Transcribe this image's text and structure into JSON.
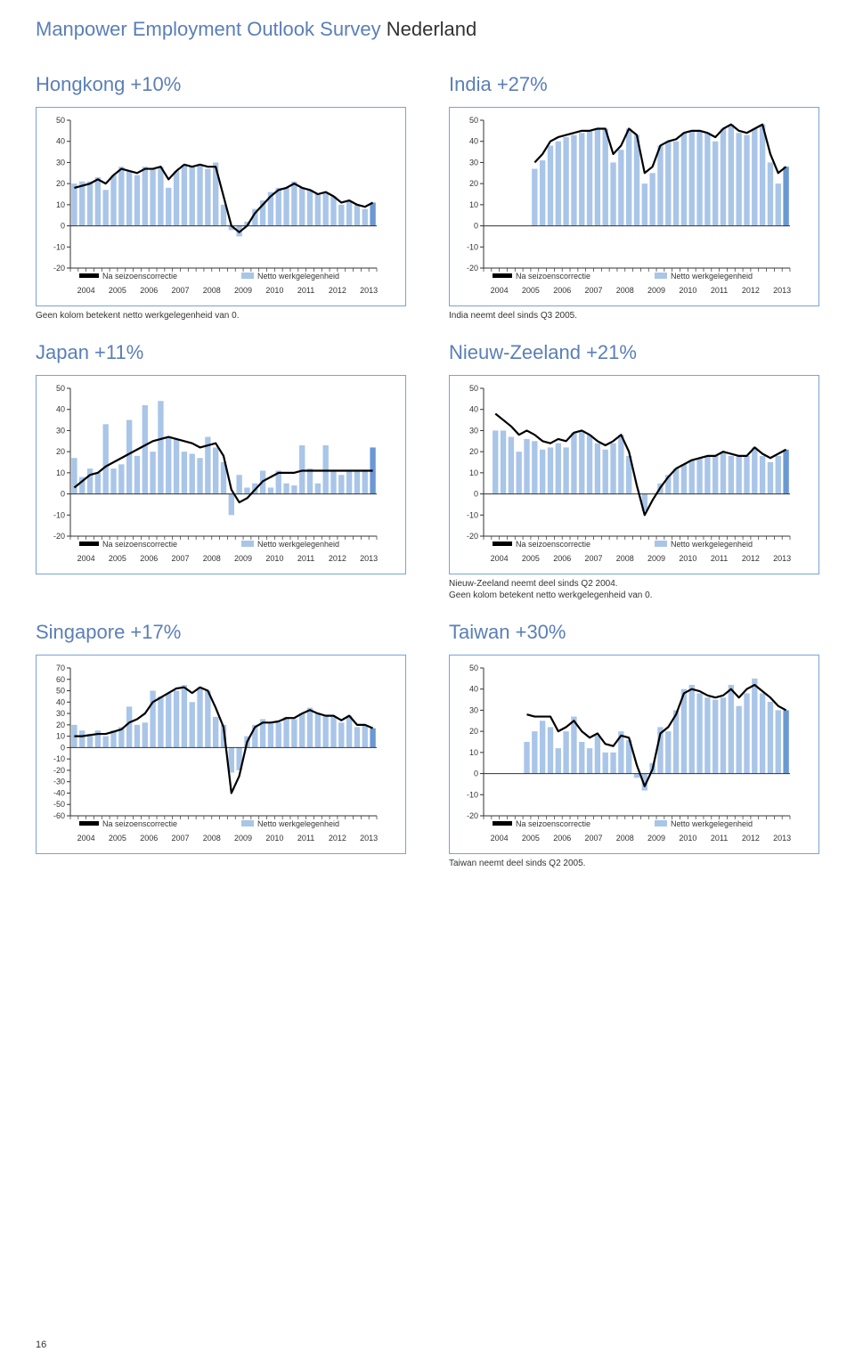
{
  "header": {
    "prefix": "Manpower Employment Outlook Survey",
    "suffix": "Nederland"
  },
  "legend": {
    "line_label": "Na seizoenscorrectie",
    "bar_label": "Netto werkgelegenheid"
  },
  "x_years": [
    "2004",
    "2005",
    "2006",
    "2007",
    "2008",
    "2009",
    "2010",
    "2011",
    "2012",
    "2013"
  ],
  "chart_style": {
    "bar_fill": "#a9c5e8",
    "bar_highlight": "#6a98d2",
    "line_color": "#000000",
    "line_width": 2.2,
    "axis_color": "#333333",
    "tick_font": 9,
    "label_font": 13
  },
  "charts": [
    {
      "title": "Hongkong +10%",
      "note_before": null,
      "note_after": "Geen kolom betekent netto werkgelegenheid van 0.",
      "y_min": -20,
      "y_max": 50,
      "y_step": 10,
      "bars": [
        20,
        21,
        21,
        23,
        17,
        24,
        28,
        26,
        24,
        28,
        27,
        28,
        18,
        26,
        29,
        28,
        29,
        27,
        30,
        10,
        -2,
        -5,
        2,
        8,
        12,
        16,
        18,
        18,
        21,
        18,
        17,
        15,
        16,
        14,
        10,
        12,
        10,
        8,
        11
      ],
      "line": [
        18,
        19,
        20,
        22,
        20,
        24,
        27,
        26,
        25,
        27,
        27,
        28,
        22,
        26,
        29,
        28,
        29,
        28,
        28,
        14,
        0,
        -3,
        0,
        6,
        10,
        14,
        17,
        18,
        20,
        18,
        17,
        15,
        16,
        14,
        11,
        12,
        10,
        9,
        11
      ],
      "highlight_last": true
    },
    {
      "title": "India +27%",
      "note_before": "India neemt deel sinds Q3 2005.",
      "note_after": null,
      "y_min": -20,
      "y_max": 50,
      "y_step": 10,
      "bars": [
        null,
        null,
        null,
        null,
        null,
        null,
        27,
        31,
        38,
        40,
        42,
        43,
        44,
        45,
        46,
        46,
        30,
        36,
        46,
        43,
        20,
        25,
        38,
        40,
        40,
        44,
        45,
        45,
        44,
        40,
        46,
        48,
        44,
        43,
        46,
        48,
        30,
        20,
        28
      ],
      "line": [
        null,
        null,
        null,
        null,
        null,
        null,
        30,
        34,
        40,
        42,
        43,
        44,
        45,
        45,
        46,
        46,
        34,
        38,
        46,
        43,
        25,
        28,
        38,
        40,
        41,
        44,
        45,
        45,
        44,
        42,
        46,
        48,
        45,
        44,
        46,
        48,
        34,
        25,
        28
      ],
      "highlight_last": true
    },
    {
      "title": "Japan +11%",
      "note_before": null,
      "note_after": null,
      "y_min": -20,
      "y_max": 50,
      "y_step": 10,
      "bars": [
        17,
        8,
        12,
        10,
        33,
        12,
        14,
        35,
        18,
        42,
        20,
        44,
        27,
        26,
        20,
        19,
        17,
        27,
        22,
        15,
        -10,
        9,
        3,
        5,
        11,
        3,
        11,
        5,
        4,
        23,
        12,
        5,
        23,
        11,
        9,
        11,
        11,
        11,
        22
      ],
      "line": [
        3,
        6,
        9,
        10,
        13,
        15,
        17,
        19,
        21,
        23,
        25,
        26,
        27,
        26,
        25,
        24,
        22,
        23,
        24,
        18,
        2,
        -4,
        -2,
        2,
        6,
        8,
        10,
        10,
        10,
        11,
        11,
        11,
        11,
        11,
        11,
        11,
        11,
        11,
        11
      ],
      "highlight_last": true
    },
    {
      "title": "Nieuw-Zeeland +21%",
      "note_before": null,
      "note_after": "Nieuw-Zeeland neemt deel sinds Q2 2004.\nGeen kolom betekent netto werkgelegenheid van 0.",
      "y_min": -20,
      "y_max": 50,
      "y_step": 10,
      "bars": [
        null,
        30,
        30,
        27,
        20,
        26,
        25,
        21,
        22,
        24,
        22,
        29,
        30,
        28,
        24,
        21,
        24,
        28,
        18,
        null,
        -8,
        null,
        5,
        9,
        12,
        14,
        16,
        17,
        18,
        18,
        20,
        18,
        18,
        18,
        22,
        18,
        15,
        18,
        21
      ],
      "line": [
        null,
        38,
        35,
        32,
        28,
        30,
        28,
        25,
        24,
        26,
        25,
        29,
        30,
        28,
        25,
        23,
        25,
        28,
        20,
        4,
        -10,
        -3,
        3,
        8,
        12,
        14,
        16,
        17,
        18,
        18,
        20,
        19,
        18,
        18,
        22,
        19,
        17,
        19,
        21
      ],
      "highlight_last": true
    },
    {
      "title": "Singapore +17%",
      "note_before": null,
      "note_after": null,
      "y_min": -60,
      "y_max": 70,
      "y_step": 10,
      "bars": [
        20,
        15,
        12,
        15,
        10,
        15,
        18,
        36,
        20,
        22,
        50,
        45,
        48,
        50,
        55,
        40,
        53,
        50,
        27,
        20,
        -22,
        -20,
        10,
        20,
        25,
        22,
        22,
        27,
        25,
        30,
        35,
        30,
        28,
        28,
        22,
        28,
        18,
        20,
        17
      ],
      "line": [
        10,
        10,
        11,
        12,
        12,
        14,
        16,
        22,
        25,
        30,
        40,
        44,
        48,
        52,
        53,
        48,
        53,
        50,
        35,
        18,
        -40,
        -25,
        5,
        18,
        22,
        22,
        23,
        26,
        26,
        30,
        33,
        30,
        28,
        28,
        24,
        28,
        20,
        20,
        17
      ],
      "highlight_last": true
    },
    {
      "title": "Taiwan +30%",
      "note_before": null,
      "note_after": "Taiwan neemt deel sinds Q2 2005.",
      "y_min": -20,
      "y_max": 50,
      "y_step": 10,
      "bars": [
        null,
        null,
        null,
        null,
        null,
        15,
        20,
        25,
        22,
        12,
        20,
        27,
        15,
        12,
        18,
        10,
        10,
        20,
        16,
        -2,
        -8,
        5,
        22,
        20,
        30,
        40,
        42,
        38,
        36,
        35,
        36,
        42,
        32,
        38,
        45,
        38,
        34,
        30,
        30
      ],
      "line": [
        null,
        null,
        null,
        null,
        null,
        28,
        27,
        27,
        27,
        20,
        22,
        25,
        20,
        17,
        19,
        14,
        13,
        18,
        17,
        4,
        -6,
        2,
        19,
        22,
        28,
        38,
        40,
        39,
        37,
        36,
        37,
        40,
        36,
        40,
        42,
        39,
        36,
        32,
        30
      ],
      "highlight_last": true
    }
  ],
  "page_number": "16"
}
